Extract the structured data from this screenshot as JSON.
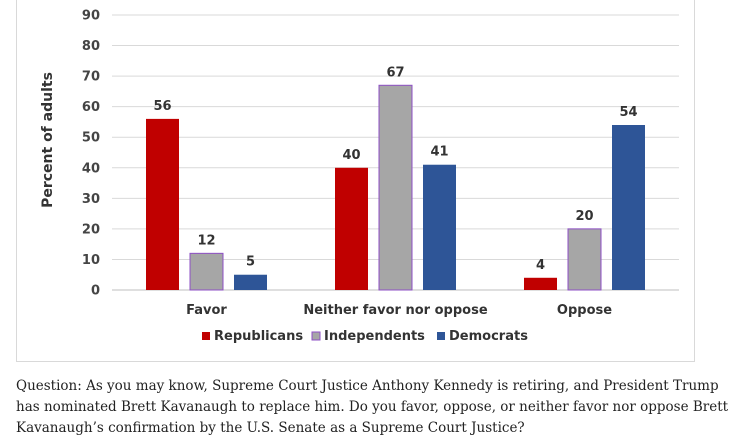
{
  "chart_data": {
    "type": "bar",
    "ylabel": "Percent of adults",
    "ylim": [
      0,
      90
    ],
    "yticks": [
      0,
      10,
      20,
      30,
      40,
      50,
      60,
      70,
      80,
      90
    ],
    "categories": [
      "Favor",
      "Neither favor nor oppose",
      "Oppose"
    ],
    "series": [
      {
        "name": "Republicans",
        "color": "#c00000",
        "values": [
          56,
          40,
          4
        ]
      },
      {
        "name": "Independents",
        "color": "#a6a6a6",
        "border": "#8e4fc6",
        "values": [
          12,
          67,
          20
        ]
      },
      {
        "name": "Democrats",
        "color": "#2e5597",
        "values": [
          5,
          41,
          54
        ]
      }
    ],
    "grid": true,
    "legend": "bottom"
  },
  "caption": "Question: As you may know, Supreme Court Justice Anthony Kennedy is retiring, and President Trump has nominated Brett Kavanaugh to replace him. Do you favor, oppose, or neither favor nor oppose Brett Kavanaugh’s confirmation by the U.S. Senate as a Supreme Court Justice?"
}
